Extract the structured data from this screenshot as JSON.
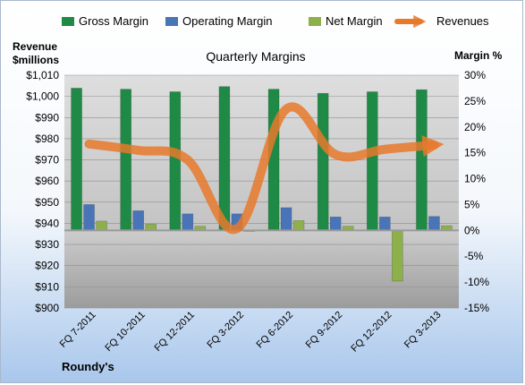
{
  "company": "Roundy's",
  "chart_data": {
    "type": "bar",
    "title": "Quarterly Margins",
    "ylabel_left": "Revenue $millions",
    "ylabel_right": "Margin %",
    "categories": [
      "FQ 7-2011",
      "FQ 10-2011",
      "FQ 12-2011",
      "FQ 3-2012",
      "FQ 6-2012",
      "FQ 9-2012",
      "FQ 12-2012",
      "FQ 3-2013"
    ],
    "left_axis": {
      "min": 900,
      "max": 1010,
      "step": 10,
      "prefix": "$"
    },
    "right_axis": {
      "min": -15,
      "max": 30,
      "step": 5,
      "suffix": "%"
    },
    "legend_position": "top",
    "grid": true,
    "series": [
      {
        "name": "Gross Margin",
        "kind": "bar",
        "axis": "right",
        "color": "#1f8a45",
        "values": [
          27.5,
          27.3,
          26.8,
          27.8,
          27.3,
          26.5,
          26.8,
          27.2
        ]
      },
      {
        "name": "Operating Margin",
        "kind": "bar",
        "axis": "right",
        "color": "#4a74b8",
        "values": [
          5.0,
          3.8,
          3.2,
          3.2,
          4.4,
          2.6,
          2.6,
          2.7
        ]
      },
      {
        "name": "Net Margin",
        "kind": "bar",
        "axis": "right",
        "color": "#8db04a",
        "values": [
          1.8,
          1.2,
          0.8,
          -0.2,
          1.9,
          0.8,
          -9.8,
          0.9
        ]
      },
      {
        "name": "Revenues",
        "kind": "line",
        "axis": "left",
        "color": "#e8792b",
        "values": [
          977.5,
          974.5,
          970,
          937.5,
          994,
          972.5,
          975,
          977
        ]
      }
    ]
  }
}
